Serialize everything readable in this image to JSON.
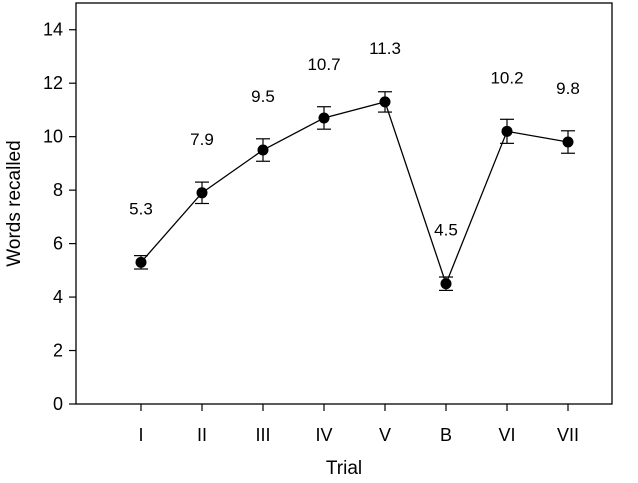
{
  "chart_data": {
    "type": "line",
    "categories": [
      "I",
      "II",
      "III",
      "IV",
      "V",
      "B",
      "VI",
      "VII"
    ],
    "values": [
      5.3,
      7.9,
      9.5,
      10.7,
      11.3,
      4.5,
      10.2,
      9.8
    ],
    "error": [
      0.25,
      0.4,
      0.42,
      0.42,
      0.38,
      0.25,
      0.45,
      0.42
    ],
    "data_labels": [
      "5.3",
      "7.9",
      "9.5",
      "10.7",
      "11.3",
      "4.5",
      "10.2",
      "9.8"
    ],
    "xlabel": "Trial",
    "ylabel": "Words recalled",
    "ylim": [
      0,
      15
    ],
    "yticks": [
      0,
      2,
      4,
      6,
      8,
      10,
      12,
      14
    ],
    "ytick_labels": [
      "0",
      "2",
      "4",
      "6",
      "8",
      "10",
      "12",
      "14"
    ],
    "grid": false,
    "colors": {
      "line": "#000000",
      "marker": "#000000"
    }
  }
}
